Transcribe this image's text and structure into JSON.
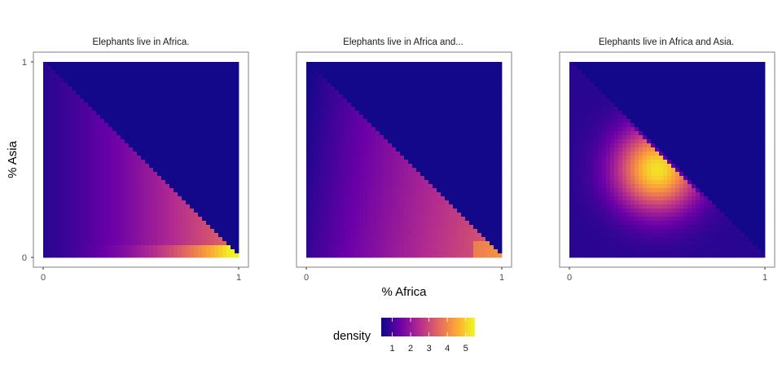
{
  "chart_data": {
    "type": "heatmap",
    "xlabel": "% Africa",
    "ylabel": "% Asia",
    "xlim": [
      0,
      1
    ],
    "ylim": [
      0,
      1
    ],
    "x_ticks": [
      "0",
      "1"
    ],
    "y_ticks": [
      "0",
      "1"
    ],
    "grid": false,
    "facets": [
      {
        "title": "Elephants live in Africa.",
        "peak": {
          "x": 0.95,
          "y": 0.02,
          "density": 5.4
        },
        "description": "density rises toward high % Africa and low % Asia"
      },
      {
        "title": "Elephants live in Africa and...",
        "peak": {
          "x": 0.97,
          "y": 0.02,
          "density": 4.3
        },
        "description": "density spread across lower triangle, highest near x=1, y=0"
      },
      {
        "title": "Elephants live in Africa and Asia.",
        "peak": {
          "x": 0.45,
          "y": 0.45,
          "density": 5.2
        },
        "description": "density concentrated in middle of lower triangle"
      }
    ],
    "legend": {
      "title": "density",
      "position": "bottom",
      "ticks": [
        "1",
        "2",
        "3",
        "4",
        "5"
      ],
      "range": [
        0.4,
        5.5
      ],
      "palette": [
        "#0d0887",
        "#6a00a8",
        "#b12a90",
        "#e16462",
        "#fca636",
        "#f0f921"
      ]
    }
  }
}
